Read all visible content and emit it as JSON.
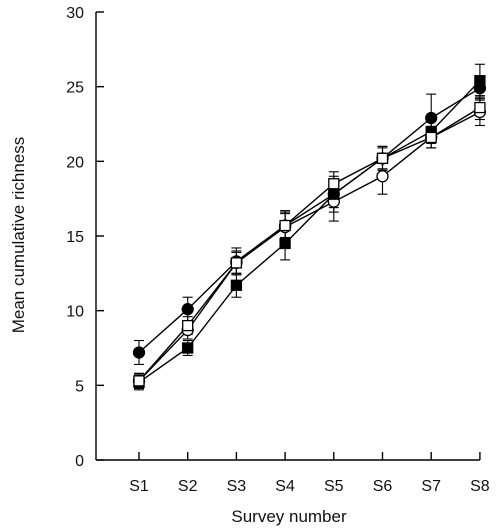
{
  "chart_data": {
    "type": "line",
    "xlabel": "Survey number",
    "ylabel": "Mean cumulative richness",
    "ylim": [
      0,
      30
    ],
    "yticks": [
      0,
      5,
      10,
      15,
      20,
      25,
      30
    ],
    "grid": false,
    "legend": "none",
    "categories": [
      "S1",
      "S2",
      "S3",
      "S4",
      "S5",
      "S6",
      "S7",
      "S8"
    ],
    "series": [
      {
        "marker": "filled-circle",
        "color": "#000000",
        "values": [
          7.2,
          10.1,
          13.3,
          15.7,
          17.8,
          20.2,
          22.9,
          24.9
        ],
        "errors": [
          0.8,
          0.8,
          0.9,
          0.9,
          0.9,
          0.8,
          1.6,
          0.8
        ]
      },
      {
        "marker": "open-circle",
        "color": "#000000",
        "values": [
          5.3,
          8.7,
          13.2,
          15.6,
          17.3,
          19.0,
          21.6,
          23.3
        ],
        "errors": [
          0.5,
          0.6,
          0.7,
          1.1,
          1.3,
          1.2,
          0.7,
          0.9
        ]
      },
      {
        "marker": "filled-square",
        "color": "#000000",
        "values": [
          5.2,
          7.5,
          11.7,
          14.5,
          17.8,
          20.2,
          22.0,
          25.4
        ],
        "errors": [
          0.5,
          0.5,
          0.8,
          1.1,
          1.2,
          0.8,
          0.8,
          1.1
        ]
      },
      {
        "marker": "open-square",
        "color": "#000000",
        "values": [
          5.3,
          9.0,
          13.2,
          15.7,
          18.5,
          20.2,
          21.6,
          23.6
        ],
        "errors": [
          0.5,
          0.6,
          0.8,
          0.8,
          0.8,
          0.7,
          0.7,
          0.8
        ]
      }
    ]
  }
}
